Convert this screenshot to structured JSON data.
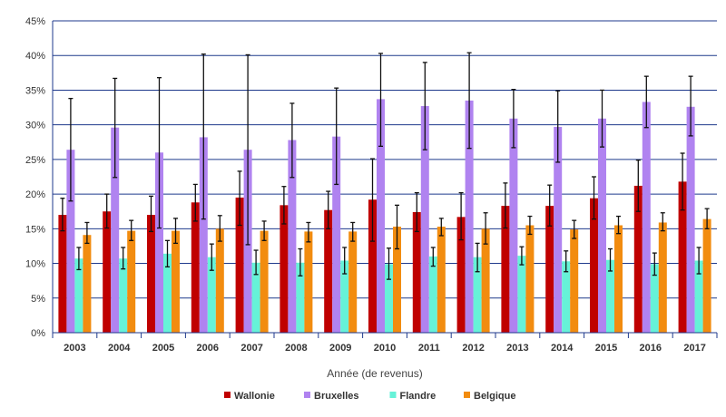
{
  "chart_data": {
    "type": "bar",
    "title": "",
    "xlabel": "Année (de revenus)",
    "ylabel": "",
    "ylim": [
      0,
      45
    ],
    "y_ticks": [
      "0%",
      "5%",
      "10%",
      "15%",
      "20%",
      "25%",
      "30%",
      "35%",
      "40%",
      "45%"
    ],
    "grid": true,
    "legend_position": "bottom",
    "categories": [
      "2003",
      "2004",
      "2005",
      "2006",
      "2007",
      "2008",
      "2009",
      "2010",
      "2011",
      "2012",
      "2013",
      "2014",
      "2015",
      "2016",
      "2017"
    ],
    "series": [
      {
        "name": "Wallonie",
        "color": "#c00000",
        "values": [
          17.0,
          17.5,
          17.0,
          18.8,
          19.5,
          18.4,
          17.7,
          19.2,
          17.4,
          16.7,
          18.3,
          18.3,
          19.4,
          21.2,
          21.8
        ],
        "error_low": [
          14.7,
          15.1,
          14.6,
          16.1,
          15.5,
          15.7,
          15.0,
          13.2,
          14.6,
          13.4,
          15.1,
          15.4,
          16.4,
          17.5,
          17.7
        ],
        "error_high": [
          19.4,
          20.0,
          19.7,
          21.4,
          23.3,
          21.1,
          20.4,
          25.1,
          20.2,
          20.2,
          21.6,
          21.3,
          22.5,
          24.9,
          25.9
        ]
      },
      {
        "name": "Bruxelles",
        "color": "#b083f0",
        "values": [
          26.4,
          29.6,
          26.0,
          28.2,
          26.4,
          27.8,
          28.3,
          33.7,
          32.7,
          33.5,
          30.9,
          29.7,
          30.9,
          33.3,
          32.6
        ],
        "error_low": [
          19.0,
          22.4,
          15.1,
          16.4,
          12.7,
          22.4,
          21.4,
          26.9,
          26.4,
          26.6,
          26.7,
          24.6,
          26.8,
          29.6,
          28.4
        ],
        "error_high": [
          33.8,
          36.7,
          36.8,
          40.2,
          40.1,
          33.1,
          35.3,
          40.3,
          39.0,
          40.4,
          35.1,
          34.9,
          35.0,
          37.0,
          37.0
        ]
      },
      {
        "name": "Flandre",
        "color": "#66f2d8",
        "values": [
          10.7,
          10.7,
          11.4,
          10.9,
          10.1,
          10.1,
          10.4,
          9.9,
          11.0,
          10.9,
          11.1,
          10.3,
          10.5,
          9.9,
          10.4
        ],
        "error_low": [
          9.1,
          9.2,
          9.5,
          9.0,
          8.4,
          8.2,
          8.5,
          7.7,
          9.6,
          8.8,
          9.8,
          8.8,
          8.9,
          8.3,
          8.5
        ],
        "error_high": [
          12.3,
          12.3,
          13.3,
          12.8,
          11.9,
          12.1,
          12.3,
          12.2,
          12.3,
          12.9,
          12.4,
          11.8,
          12.1,
          11.5,
          12.3
        ]
      },
      {
        "name": "Belgique",
        "color": "#f28c0f",
        "values": [
          14.1,
          14.7,
          14.7,
          15.0,
          14.7,
          14.6,
          14.6,
          15.3,
          15.3,
          15.0,
          15.5,
          14.9,
          15.5,
          15.9,
          16.4
        ],
        "error_low": [
          12.9,
          13.3,
          12.9,
          13.2,
          13.3,
          13.1,
          13.2,
          12.1,
          14.0,
          12.8,
          14.2,
          13.6,
          14.3,
          14.7,
          15.0
        ],
        "error_high": [
          15.9,
          16.2,
          16.5,
          16.9,
          16.1,
          15.9,
          15.9,
          18.4,
          16.5,
          17.3,
          16.8,
          16.2,
          16.8,
          17.3,
          17.9
        ]
      }
    ]
  }
}
